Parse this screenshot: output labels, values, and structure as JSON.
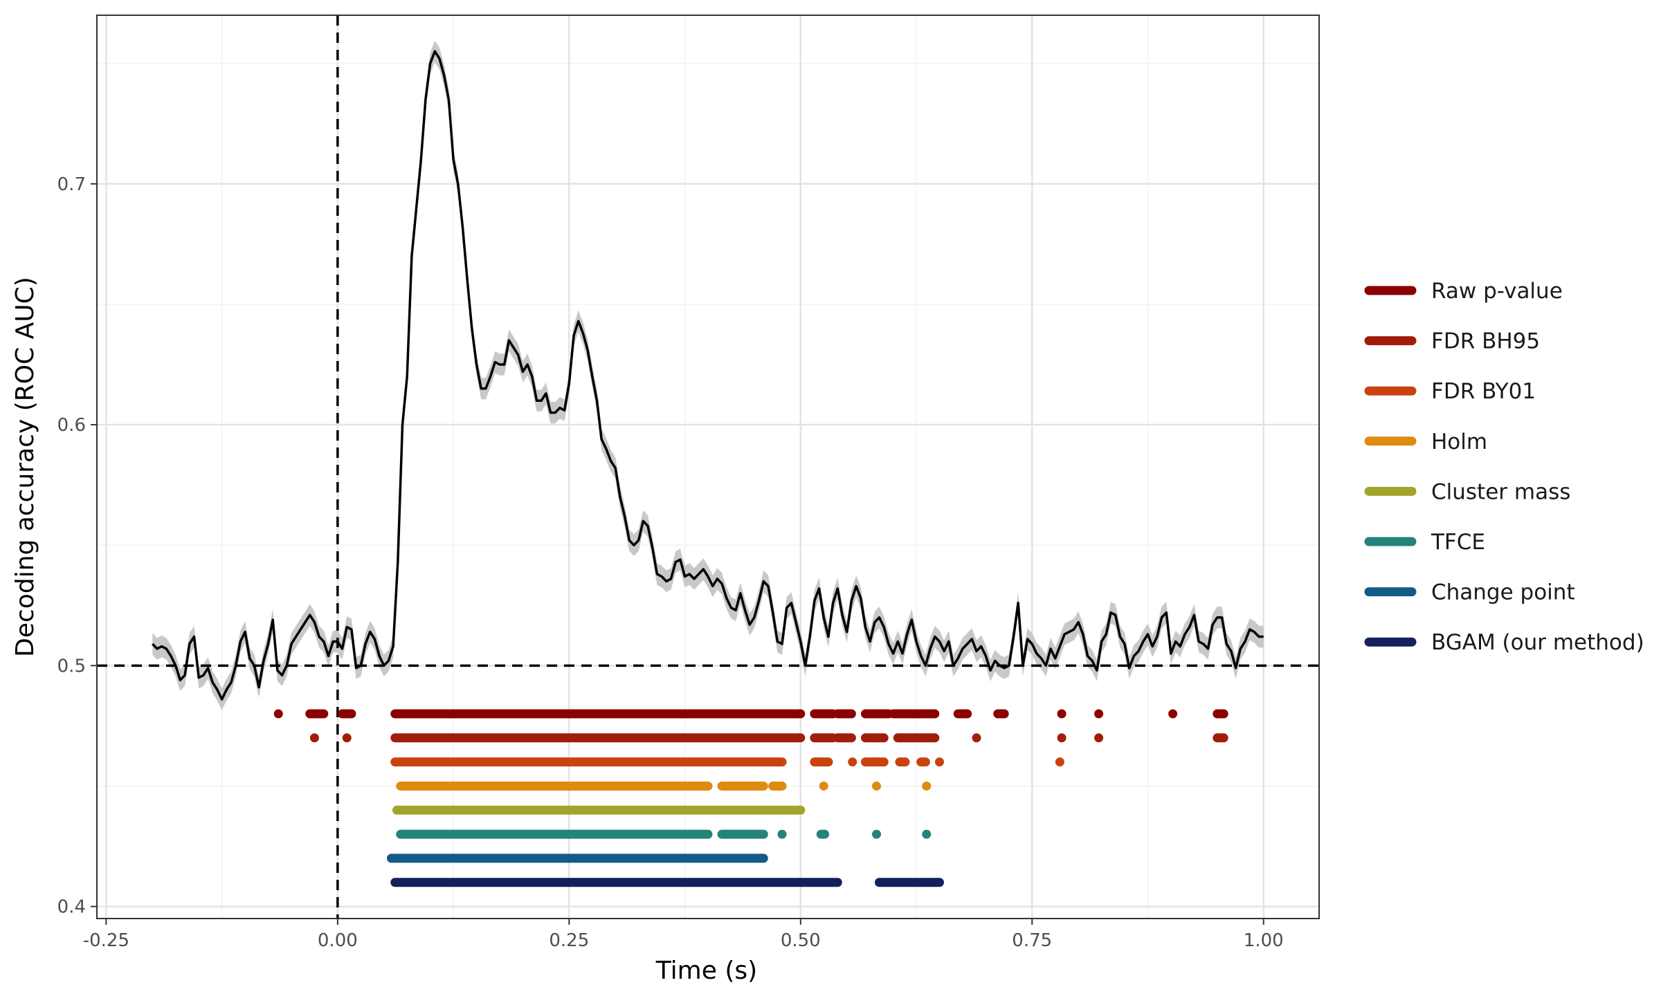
{
  "chart_data": {
    "type": "line",
    "xlabel": "Time (s)",
    "ylabel": "Decoding accuracy (ROC AUC)",
    "xlim": [
      -0.26,
      1.06
    ],
    "ylim": [
      0.395,
      0.77
    ],
    "x_ticks": [
      -0.25,
      0.0,
      0.25,
      0.5,
      0.75,
      1.0
    ],
    "x_tick_labels": [
      "-0.25",
      "0.00",
      "0.25",
      "0.50",
      "0.75",
      "1.00"
    ],
    "y_ticks": [
      0.4,
      0.5,
      0.6,
      0.7
    ],
    "y_tick_labels": [
      "0.4",
      "0.5",
      "0.6",
      "0.7"
    ],
    "reference_lines": {
      "chance_y": 0.5,
      "onset_x": 0.0
    },
    "grid": true,
    "legend_position": "right",
    "series": [
      {
        "role": "decoding accuracy with confidence band",
        "color": "#000000",
        "band_color": "#c8c8c8",
        "band_halfwidth": 0.0045,
        "points": [
          [
            -0.2,
            0.509
          ],
          [
            -0.195,
            0.507
          ],
          [
            -0.19,
            0.508
          ],
          [
            -0.185,
            0.507
          ],
          [
            -0.18,
            0.504
          ],
          [
            -0.175,
            0.5
          ],
          [
            -0.17,
            0.494
          ],
          [
            -0.165,
            0.496
          ],
          [
            -0.16,
            0.509
          ],
          [
            -0.155,
            0.512
          ],
          [
            -0.15,
            0.495
          ],
          [
            -0.145,
            0.496
          ],
          [
            -0.14,
            0.499
          ],
          [
            -0.135,
            0.493
          ],
          [
            -0.13,
            0.49
          ],
          [
            -0.125,
            0.486
          ],
          [
            -0.12,
            0.49
          ],
          [
            -0.115,
            0.493
          ],
          [
            -0.11,
            0.5
          ],
          [
            -0.105,
            0.51
          ],
          [
            -0.1,
            0.514
          ],
          [
            -0.095,
            0.503
          ],
          [
            -0.09,
            0.5
          ],
          [
            -0.085,
            0.491
          ],
          [
            -0.08,
            0.502
          ],
          [
            -0.075,
            0.509
          ],
          [
            -0.07,
            0.519
          ],
          [
            -0.065,
            0.498
          ],
          [
            -0.06,
            0.496
          ],
          [
            -0.055,
            0.5
          ],
          [
            -0.05,
            0.509
          ],
          [
            -0.045,
            0.512
          ],
          [
            -0.04,
            0.515
          ],
          [
            -0.035,
            0.518
          ],
          [
            -0.03,
            0.521
          ],
          [
            -0.025,
            0.518
          ],
          [
            -0.02,
            0.512
          ],
          [
            -0.015,
            0.51
          ],
          [
            -0.01,
            0.504
          ],
          [
            -0.005,
            0.51
          ],
          [
            0.0,
            0.51
          ],
          [
            0.005,
            0.507
          ],
          [
            0.01,
            0.516
          ],
          [
            0.015,
            0.515
          ],
          [
            0.02,
            0.499
          ],
          [
            0.025,
            0.5
          ],
          [
            0.03,
            0.509
          ],
          [
            0.035,
            0.514
          ],
          [
            0.04,
            0.511
          ],
          [
            0.045,
            0.504
          ],
          [
            0.05,
            0.5
          ],
          [
            0.055,
            0.502
          ],
          [
            0.06,
            0.508
          ],
          [
            0.065,
            0.543
          ],
          [
            0.07,
            0.6
          ],
          [
            0.075,
            0.62
          ],
          [
            0.08,
            0.67
          ],
          [
            0.085,
            0.69
          ],
          [
            0.09,
            0.71
          ],
          [
            0.095,
            0.735
          ],
          [
            0.1,
            0.75
          ],
          [
            0.105,
            0.755
          ],
          [
            0.11,
            0.752
          ],
          [
            0.115,
            0.745
          ],
          [
            0.12,
            0.735
          ],
          [
            0.125,
            0.71
          ],
          [
            0.13,
            0.7
          ],
          [
            0.135,
            0.682
          ],
          [
            0.14,
            0.66
          ],
          [
            0.145,
            0.64
          ],
          [
            0.15,
            0.625
          ],
          [
            0.155,
            0.615
          ],
          [
            0.16,
            0.615
          ],
          [
            0.165,
            0.62
          ],
          [
            0.17,
            0.626
          ],
          [
            0.175,
            0.625
          ],
          [
            0.18,
            0.625
          ],
          [
            0.185,
            0.635
          ],
          [
            0.19,
            0.632
          ],
          [
            0.195,
            0.629
          ],
          [
            0.2,
            0.622
          ],
          [
            0.205,
            0.625
          ],
          [
            0.21,
            0.62
          ],
          [
            0.215,
            0.61
          ],
          [
            0.22,
            0.61
          ],
          [
            0.225,
            0.613
          ],
          [
            0.23,
            0.605
          ],
          [
            0.235,
            0.605
          ],
          [
            0.24,
            0.607
          ],
          [
            0.245,
            0.606
          ],
          [
            0.25,
            0.617
          ],
          [
            0.255,
            0.637
          ],
          [
            0.26,
            0.643
          ],
          [
            0.265,
            0.638
          ],
          [
            0.27,
            0.631
          ],
          [
            0.275,
            0.62
          ],
          [
            0.28,
            0.61
          ],
          [
            0.285,
            0.594
          ],
          [
            0.29,
            0.59
          ],
          [
            0.295,
            0.585
          ],
          [
            0.3,
            0.582
          ],
          [
            0.305,
            0.57
          ],
          [
            0.31,
            0.562
          ],
          [
            0.315,
            0.552
          ],
          [
            0.32,
            0.55
          ],
          [
            0.325,
            0.552
          ],
          [
            0.33,
            0.56
          ],
          [
            0.335,
            0.558
          ],
          [
            0.34,
            0.549
          ],
          [
            0.345,
            0.538
          ],
          [
            0.35,
            0.537
          ],
          [
            0.355,
            0.535
          ],
          [
            0.36,
            0.536
          ],
          [
            0.365,
            0.543
          ],
          [
            0.37,
            0.544
          ],
          [
            0.375,
            0.537
          ],
          [
            0.38,
            0.538
          ],
          [
            0.385,
            0.536
          ],
          [
            0.39,
            0.538
          ],
          [
            0.395,
            0.54
          ],
          [
            0.4,
            0.537
          ],
          [
            0.405,
            0.533
          ],
          [
            0.41,
            0.536
          ],
          [
            0.415,
            0.534
          ],
          [
            0.42,
            0.528
          ],
          [
            0.425,
            0.524
          ],
          [
            0.43,
            0.523
          ],
          [
            0.435,
            0.53
          ],
          [
            0.44,
            0.523
          ],
          [
            0.445,
            0.517
          ],
          [
            0.45,
            0.52
          ],
          [
            0.455,
            0.527
          ],
          [
            0.46,
            0.535
          ],
          [
            0.465,
            0.533
          ],
          [
            0.47,
            0.522
          ],
          [
            0.475,
            0.51
          ],
          [
            0.48,
            0.509
          ],
          [
            0.485,
            0.524
          ],
          [
            0.49,
            0.526
          ],
          [
            0.495,
            0.518
          ],
          [
            0.5,
            0.51
          ],
          [
            0.505,
            0.5
          ],
          [
            0.51,
            0.512
          ],
          [
            0.515,
            0.527
          ],
          [
            0.52,
            0.532
          ],
          [
            0.525,
            0.52
          ],
          [
            0.53,
            0.512
          ],
          [
            0.535,
            0.526
          ],
          [
            0.54,
            0.532
          ],
          [
            0.545,
            0.521
          ],
          [
            0.55,
            0.514
          ],
          [
            0.555,
            0.527
          ],
          [
            0.56,
            0.533
          ],
          [
            0.565,
            0.528
          ],
          [
            0.57,
            0.516
          ],
          [
            0.575,
            0.51
          ],
          [
            0.58,
            0.518
          ],
          [
            0.585,
            0.52
          ],
          [
            0.59,
            0.516
          ],
          [
            0.595,
            0.509
          ],
          [
            0.6,
            0.505
          ],
          [
            0.605,
            0.51
          ],
          [
            0.61,
            0.505
          ],
          [
            0.615,
            0.513
          ],
          [
            0.62,
            0.519
          ],
          [
            0.625,
            0.51
          ],
          [
            0.63,
            0.504
          ],
          [
            0.635,
            0.5
          ],
          [
            0.64,
            0.507
          ],
          [
            0.645,
            0.512
          ],
          [
            0.65,
            0.51
          ],
          [
            0.655,
            0.506
          ],
          [
            0.66,
            0.51
          ],
          [
            0.665,
            0.5
          ],
          [
            0.67,
            0.503
          ],
          [
            0.675,
            0.507
          ],
          [
            0.68,
            0.509
          ],
          [
            0.685,
            0.511
          ],
          [
            0.69,
            0.506
          ],
          [
            0.695,
            0.508
          ],
          [
            0.7,
            0.504
          ],
          [
            0.705,
            0.498
          ],
          [
            0.71,
            0.502
          ],
          [
            0.715,
            0.5
          ],
          [
            0.72,
            0.499
          ],
          [
            0.725,
            0.5
          ],
          [
            0.73,
            0.512
          ],
          [
            0.735,
            0.526
          ],
          [
            0.74,
            0.5
          ],
          [
            0.745,
            0.511
          ],
          [
            0.75,
            0.509
          ],
          [
            0.755,
            0.505
          ],
          [
            0.76,
            0.503
          ],
          [
            0.765,
            0.5
          ],
          [
            0.77,
            0.507
          ],
          [
            0.775,
            0.503
          ],
          [
            0.78,
            0.508
          ],
          [
            0.785,
            0.513
          ],
          [
            0.79,
            0.514
          ],
          [
            0.795,
            0.515
          ],
          [
            0.8,
            0.518
          ],
          [
            0.805,
            0.513
          ],
          [
            0.81,
            0.504
          ],
          [
            0.815,
            0.502
          ],
          [
            0.82,
            0.498
          ],
          [
            0.825,
            0.51
          ],
          [
            0.83,
            0.513
          ],
          [
            0.835,
            0.522
          ],
          [
            0.84,
            0.521
          ],
          [
            0.845,
            0.512
          ],
          [
            0.85,
            0.509
          ],
          [
            0.855,
            0.499
          ],
          [
            0.86,
            0.504
          ],
          [
            0.865,
            0.506
          ],
          [
            0.87,
            0.51
          ],
          [
            0.875,
            0.513
          ],
          [
            0.88,
            0.508
          ],
          [
            0.885,
            0.512
          ],
          [
            0.89,
            0.52
          ],
          [
            0.895,
            0.522
          ],
          [
            0.9,
            0.505
          ],
          [
            0.905,
            0.51
          ],
          [
            0.91,
            0.508
          ],
          [
            0.915,
            0.513
          ],
          [
            0.92,
            0.516
          ],
          [
            0.925,
            0.521
          ],
          [
            0.93,
            0.51
          ],
          [
            0.935,
            0.509
          ],
          [
            0.94,
            0.507
          ],
          [
            0.945,
            0.517
          ],
          [
            0.95,
            0.52
          ],
          [
            0.955,
            0.52
          ],
          [
            0.96,
            0.509
          ],
          [
            0.965,
            0.506
          ],
          [
            0.97,
            0.499
          ],
          [
            0.975,
            0.507
          ],
          [
            0.98,
            0.51
          ],
          [
            0.985,
            0.515
          ],
          [
            0.99,
            0.514
          ],
          [
            0.995,
            0.512
          ],
          [
            1.0,
            0.512
          ]
        ]
      }
    ],
    "significance_rows": [
      {
        "name": "Raw p-value",
        "color": "#8b0000",
        "y": 0.48,
        "segments": [
          [
            -0.064,
            -0.064
          ],
          [
            -0.03,
            -0.015
          ],
          [
            0.005,
            0.015
          ],
          [
            0.062,
            0.5
          ],
          [
            0.515,
            0.535
          ],
          [
            0.54,
            0.555
          ],
          [
            0.57,
            0.595
          ],
          [
            0.6,
            0.645
          ],
          [
            0.67,
            0.68
          ],
          [
            0.713,
            0.72
          ],
          [
            0.782,
            0.782
          ],
          [
            0.822,
            0.822
          ],
          [
            0.902,
            0.902
          ],
          [
            0.95,
            0.957
          ]
        ]
      },
      {
        "name": "FDR BH95",
        "color": "#a21c0c",
        "y": 0.47,
        "segments": [
          [
            -0.025,
            -0.025
          ],
          [
            0.01,
            0.01
          ],
          [
            0.062,
            0.5
          ],
          [
            0.515,
            0.535
          ],
          [
            0.54,
            0.555
          ],
          [
            0.57,
            0.59
          ],
          [
            0.605,
            0.645
          ],
          [
            0.69,
            0.69
          ],
          [
            0.782,
            0.782
          ],
          [
            0.822,
            0.822
          ],
          [
            0.95,
            0.957
          ]
        ]
      },
      {
        "name": "FDR BY01",
        "color": "#c9430f",
        "y": 0.46,
        "segments": [
          [
            0.062,
            0.48
          ],
          [
            0.515,
            0.53
          ],
          [
            0.556,
            0.556
          ],
          [
            0.57,
            0.59
          ],
          [
            0.607,
            0.613
          ],
          [
            0.63,
            0.635
          ],
          [
            0.65,
            0.65
          ],
          [
            0.78,
            0.78
          ]
        ]
      },
      {
        "name": "Holm",
        "color": "#df8a10",
        "y": 0.45,
        "segments": [
          [
            0.068,
            0.4
          ],
          [
            0.415,
            0.46
          ],
          [
            0.47,
            0.48
          ],
          [
            0.525,
            0.525
          ],
          [
            0.582,
            0.582
          ],
          [
            0.636,
            0.636
          ]
        ]
      },
      {
        "name": "Cluster mass",
        "color": "#a3a52a",
        "y": 0.44,
        "segments": [
          [
            0.064,
            0.5
          ]
        ]
      },
      {
        "name": "TFCE",
        "color": "#24837b",
        "y": 0.43,
        "segments": [
          [
            0.068,
            0.4
          ],
          [
            0.415,
            0.46
          ],
          [
            0.48,
            0.48
          ],
          [
            0.522,
            0.526
          ],
          [
            0.582,
            0.582
          ],
          [
            0.636,
            0.636
          ]
        ]
      },
      {
        "name": "Change point",
        "color": "#145a86",
        "y": 0.42,
        "segments": [
          [
            0.058,
            0.46
          ]
        ]
      },
      {
        "name": "BGAM (our method)",
        "color": "#13215a",
        "y": 0.41,
        "segments": [
          [
            0.062,
            0.54
          ],
          [
            0.585,
            0.65
          ]
        ]
      }
    ]
  }
}
